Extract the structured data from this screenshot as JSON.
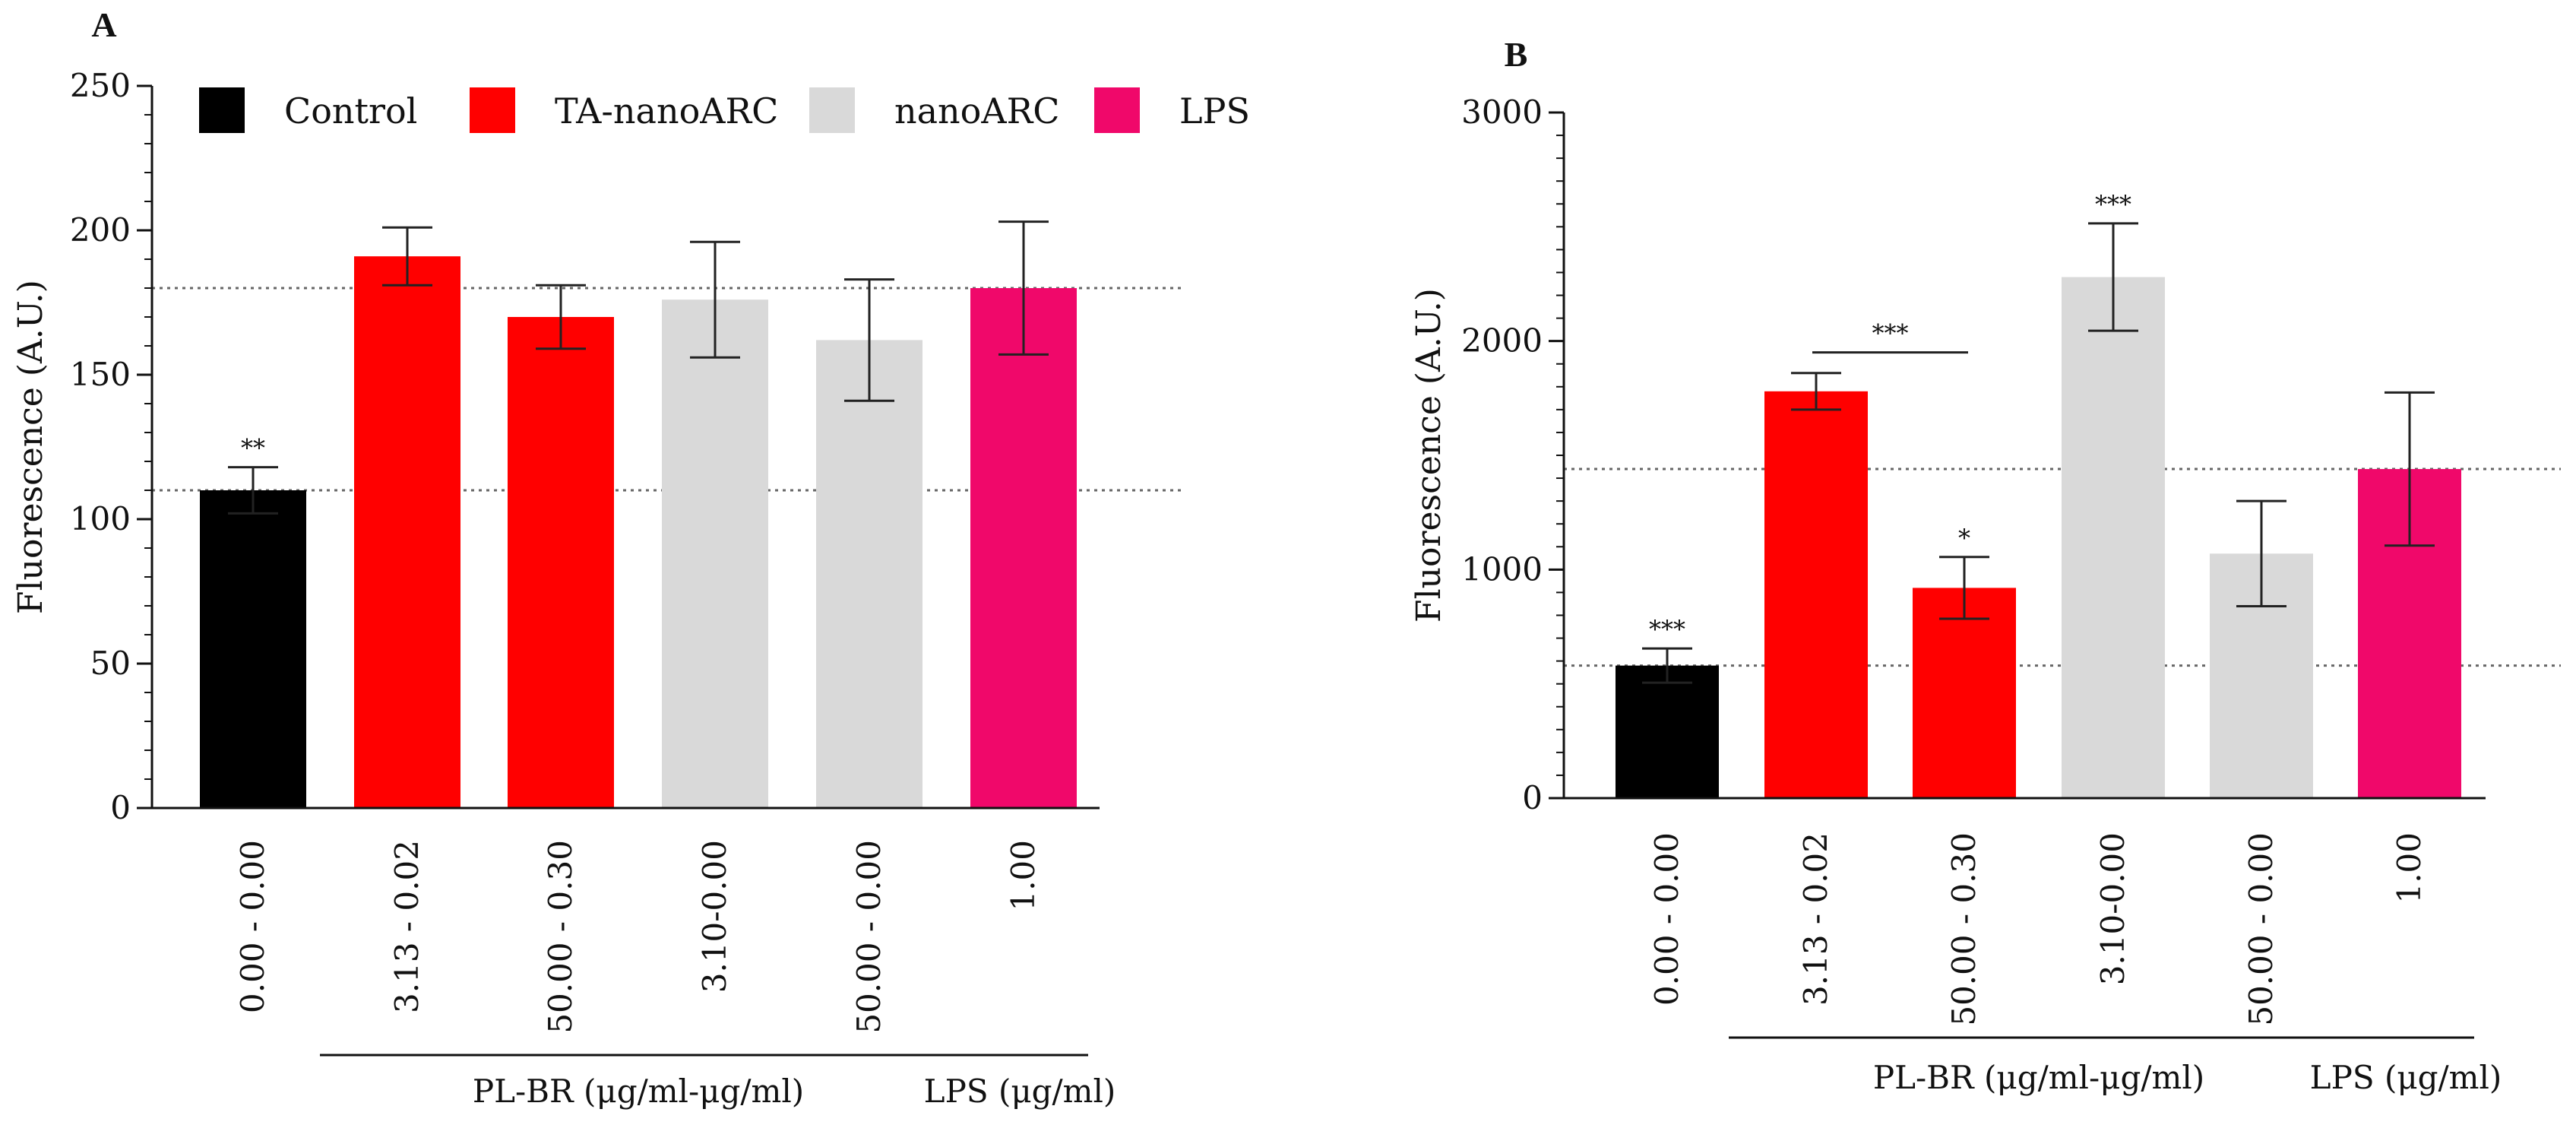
{
  "chart_data": [
    {
      "panel": "A",
      "type": "bar",
      "ylabel": "Fluorescence  (A.U.)",
      "ylim": [
        0,
        250
      ],
      "yticks": [
        0,
        50,
        100,
        150,
        200,
        250
      ],
      "categories": [
        "0.00 - 0.00",
        "3.13 - 0.02",
        "50.00 - 0.30",
        "3.10-0.00",
        "50.00 - 0.00",
        "1.00"
      ],
      "values": [
        110,
        191,
        170,
        176,
        162,
        180
      ],
      "errors": [
        8,
        10,
        11,
        20,
        21,
        23
      ],
      "series_of_bar": [
        "Control",
        "TA-nanoARC",
        "TA-nanoARC",
        "nanoARC",
        "nanoARC",
        "LPS"
      ],
      "significance": [
        "**",
        "",
        "",
        "",
        "",
        ""
      ],
      "reference_lines": [
        110,
        180
      ],
      "groups": [
        {
          "label": "PL-BR (μg/ml-μg/ml)",
          "from": 1,
          "to": 4
        },
        {
          "label": "LPS (μg/ml)",
          "from": 5,
          "to": 5
        }
      ],
      "legend": [
        {
          "name": "Control",
          "color": "#000000"
        },
        {
          "name": "TA-nanoARC",
          "color": "#ff0000"
        },
        {
          "name": "nanoARC",
          "color": "#d9d9d9"
        },
        {
          "name": "LPS",
          "color": "#f0086a"
        }
      ],
      "legend_position": "top"
    },
    {
      "panel": "B",
      "type": "bar",
      "ylabel": "Fluorescence  (A.U.)",
      "ylim": [
        0,
        3000
      ],
      "yticks": [
        0,
        1000,
        2000,
        3000
      ],
      "categories": [
        "0.00 - 0.00",
        "3.13 - 0.02",
        "50.00 - 0.30",
        "3.10-0.00",
        "50.00 - 0.00",
        "1.00"
      ],
      "values": [
        580,
        1780,
        920,
        2280,
        1070,
        1440
      ],
      "errors": [
        75,
        80,
        135,
        235,
        230,
        335
      ],
      "series_of_bar": [
        "Control",
        "TA-nanoARC",
        "TA-nanoARC",
        "nanoARC",
        "nanoARC",
        "LPS"
      ],
      "significance": [
        "***",
        "",
        "*",
        "***",
        "",
        ""
      ],
      "comparison": {
        "from": 1,
        "to": 2,
        "label": "***"
      },
      "reference_lines": [
        580,
        1440
      ],
      "groups": [
        {
          "label": "PL-BR (μg/ml-μg/ml)",
          "from": 1,
          "to": 4
        },
        {
          "label": "LPS (μg/ml)",
          "from": 5,
          "to": 5
        }
      ]
    }
  ]
}
